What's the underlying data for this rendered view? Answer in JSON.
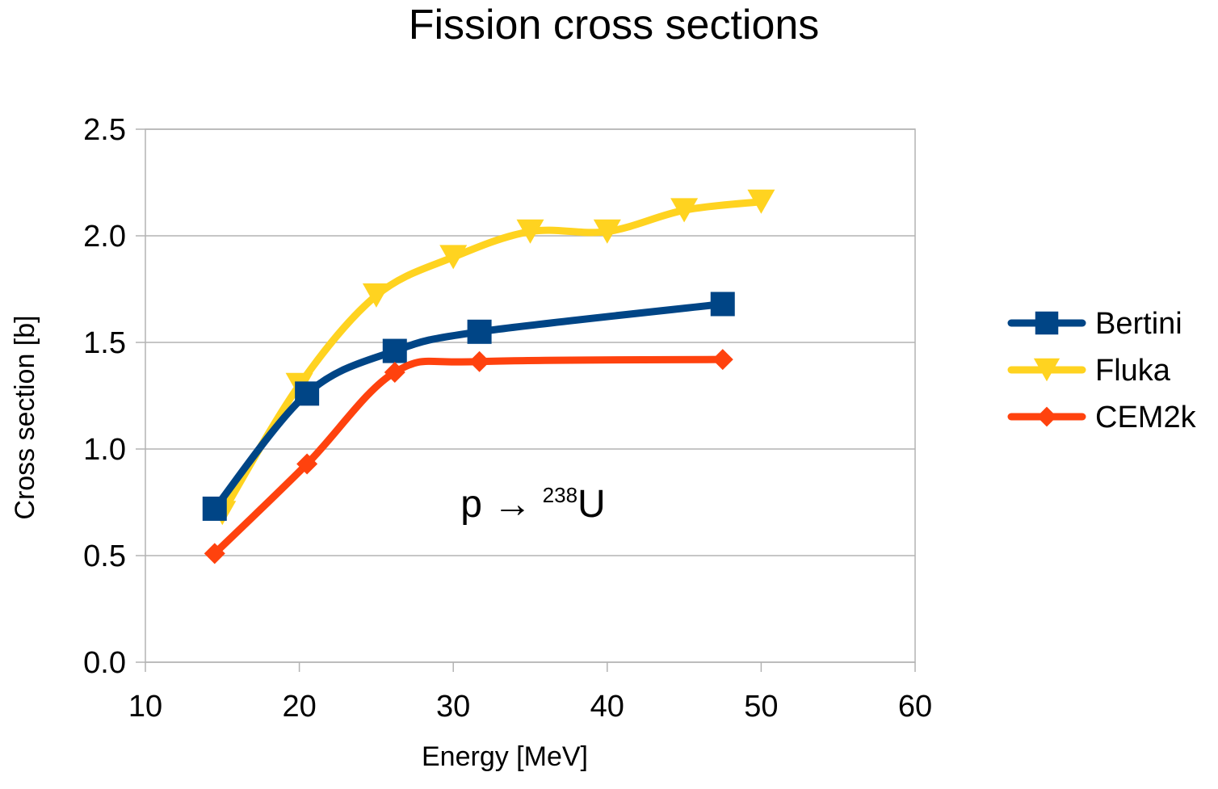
{
  "chart_data": {
    "type": "line",
    "title": "Fission cross sections",
    "xlabel": "Energy [MeV]",
    "ylabel": "Cross section [b]",
    "xlim": [
      10,
      60
    ],
    "ylim": [
      0,
      2.5
    ],
    "x_ticks": [
      "10",
      "20",
      "30",
      "40",
      "50",
      "60"
    ],
    "y_ticks": [
      "0.0",
      "0.5",
      "1.0",
      "1.5",
      "2.0",
      "2.5"
    ],
    "grid": true,
    "legend_position": "right",
    "smooth": true,
    "annotation": {
      "prefix": "p → ",
      "superscript": "238",
      "element": "U"
    },
    "series": [
      {
        "name": "Bertini",
        "color": "#004586",
        "marker": "square",
        "points": [
          {
            "x": 14.5,
            "y": 0.72
          },
          {
            "x": 20.5,
            "y": 1.26
          },
          {
            "x": 26.2,
            "y": 1.46
          },
          {
            "x": 31.7,
            "y": 1.55
          },
          {
            "x": 47.5,
            "y": 1.68
          }
        ]
      },
      {
        "name": "Fluka",
        "color": "#ffd320",
        "marker": "triangle-down",
        "points": [
          {
            "x": 15,
            "y": 0.7
          },
          {
            "x": 20,
            "y": 1.3
          },
          {
            "x": 25,
            "y": 1.72
          },
          {
            "x": 30,
            "y": 1.9
          },
          {
            "x": 35,
            "y": 2.02
          },
          {
            "x": 40,
            "y": 2.02
          },
          {
            "x": 45,
            "y": 2.12
          },
          {
            "x": 50,
            "y": 2.16
          }
        ]
      },
      {
        "name": "CEM2k",
        "color": "#ff420e",
        "marker": "diamond",
        "points": [
          {
            "x": 14.5,
            "y": 0.51
          },
          {
            "x": 20.5,
            "y": 0.93
          },
          {
            "x": 26.2,
            "y": 1.36
          },
          {
            "x": 31.7,
            "y": 1.41
          },
          {
            "x": 47.5,
            "y": 1.42
          }
        ]
      }
    ]
  }
}
